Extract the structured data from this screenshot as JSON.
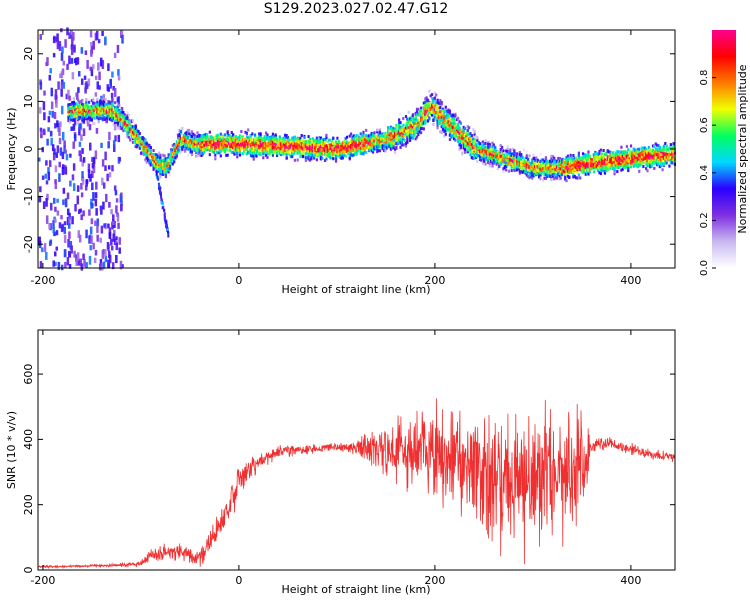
{
  "title": "S129.2023.027.02.47.G12",
  "chart_data": [
    {
      "type": "heatmap",
      "xlabel": "Height of straight line (km)",
      "ylabel": "Frequency (Hz)",
      "xlim": [
        -205,
        445
      ],
      "ylim": [
        -25,
        25
      ],
      "xticks": [
        -200,
        0,
        200,
        400
      ],
      "yticks": [
        -20,
        -10,
        0,
        10,
        20
      ],
      "colorbar": {
        "label": "Normalized spectral amplitude",
        "ticks": [
          "0.0",
          "0.2",
          "0.4",
          "0.6",
          "0.8"
        ],
        "range": [
          0,
          1
        ],
        "colors": [
          "#ffffff",
          "#c9b8f0",
          "#7e2fe0",
          "#2a00ff",
          "#00d8ff",
          "#00ff60",
          "#f0ff00",
          "#ff7a00",
          "#ff0000",
          "#ff0090"
        ]
      },
      "ridge_frequency_hz": {
        "x": [
          -170,
          -130,
          -115,
          -100,
          -85,
          -75,
          -60,
          -45,
          0,
          50,
          100,
          150,
          180,
          195,
          210,
          240,
          270,
          300,
          330,
          360,
          400,
          445
        ],
        "y": [
          8,
          8,
          5,
          1,
          -3,
          -4,
          2,
          1,
          1,
          0.5,
          0,
          2,
          5,
          9,
          6,
          0,
          -2,
          -4,
          -4,
          -3,
          -2,
          -1
        ]
      },
      "noise_region_km": [
        -205,
        -120
      ]
    },
    {
      "type": "line",
      "xlabel": "Height of straight line (km)",
      "ylabel": "SNR (10 * v/v)",
      "xlim": [
        -205,
        445
      ],
      "ylim": [
        0,
        735
      ],
      "xticks": [
        -200,
        0,
        200,
        400
      ],
      "yticks": [
        0,
        200,
        400,
        600
      ],
      "line_color": "#f03030",
      "envelope": {
        "x": [
          -205,
          -160,
          -120,
          -100,
          -90,
          -60,
          -40,
          -20,
          0,
          20,
          40,
          60,
          80,
          100,
          120,
          140,
          160,
          180,
          200,
          220,
          240,
          260,
          280,
          300,
          320,
          340,
          350,
          360,
          380,
          400,
          420,
          445
        ],
        "mean": [
          10,
          12,
          15,
          20,
          45,
          60,
          35,
          130,
          270,
          330,
          365,
          370,
          370,
          375,
          375,
          370,
          365,
          360,
          350,
          340,
          310,
          280,
          260,
          270,
          290,
          300,
          310,
          380,
          390,
          370,
          355,
          345
        ],
        "spread": [
          5,
          5,
          8,
          12,
          30,
          40,
          30,
          70,
          70,
          40,
          30,
          25,
          20,
          20,
          30,
          90,
          150,
          180,
          220,
          250,
          280,
          300,
          310,
          300,
          280,
          260,
          240,
          30,
          25,
          25,
          20,
          20
        ]
      }
    }
  ]
}
